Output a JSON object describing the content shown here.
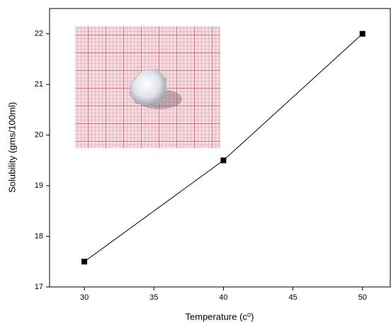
{
  "chart_data": {
    "type": "line",
    "x_label": "Temperature (c⁰)",
    "y_label": "Solubility (gms/100ml)",
    "x": [
      30,
      40,
      50
    ],
    "series": [
      {
        "color": "#000000",
        "values": [
          17.5,
          19.5,
          22
        ]
      }
    ],
    "xlim": [
      27.5,
      52
    ],
    "ylim": [
      17,
      22.5
    ],
    "xticks": [
      30,
      35,
      40,
      45,
      50
    ],
    "yticks": [
      17,
      18,
      19,
      20,
      21,
      22
    ],
    "grid": false
  }
}
